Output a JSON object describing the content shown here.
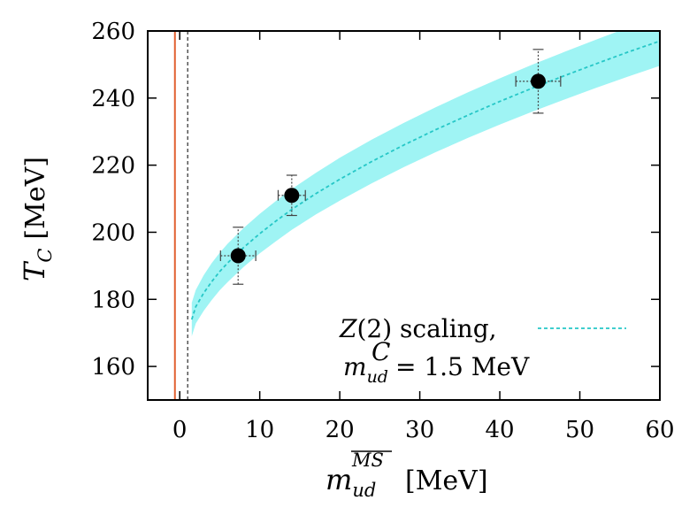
{
  "chart_data": {
    "type": "scatter",
    "xlabel": {
      "symbol": "m",
      "sub": "ud",
      "sup": "MS",
      "unit": "[MeV]"
    },
    "ylabel": {
      "symbol": "T",
      "sub": "C",
      "unit": "[MeV]"
    },
    "xlim": [
      -4,
      60
    ],
    "ylim": [
      150,
      260
    ],
    "x_ticks": [
      0,
      10,
      20,
      30,
      40,
      50,
      60
    ],
    "y_ticks": [
      160,
      180,
      200,
      220,
      240,
      260
    ],
    "grid": false,
    "points": [
      {
        "x": 7.3,
        "y": 193,
        "xerr": 2.2,
        "yerr": 8.5
      },
      {
        "x": 14.0,
        "y": 211,
        "xerr": 1.7,
        "yerr": 6.0
      },
      {
        "x": 44.8,
        "y": 245,
        "xerr": 2.8,
        "yerr": 9.5
      }
    ],
    "fit": {
      "critical_mass": 1.5,
      "x": [
        1.5,
        2,
        3,
        4,
        5,
        6,
        8,
        10,
        12,
        14,
        17,
        20,
        24,
        28,
        32,
        36,
        40,
        44,
        48,
        52,
        56,
        60
      ],
      "y": [
        174,
        177.8,
        181.9,
        185.3,
        188.3,
        190.9,
        195.5,
        199.6,
        203.3,
        206.8,
        211.5,
        215.8,
        221.1,
        226.0,
        230.6,
        234.9,
        239.0,
        242.9,
        246.6,
        250.2,
        253.7,
        257.0
      ],
      "band_width": [
        5,
        5,
        5.3,
        5.5,
        5.6,
        5.7,
        5.8,
        5.9,
        6.0,
        6.1,
        6.2,
        6.4,
        6.5,
        6.6,
        6.7,
        6.8,
        6.9,
        7.0,
        7.1,
        7.2,
        7.3,
        7.4
      ]
    },
    "vlines": [
      {
        "x": -0.6,
        "style": "solid",
        "color": "#e06030"
      },
      {
        "x": 1.0,
        "style": "dashed",
        "color": "#555555"
      }
    ],
    "legend": {
      "position": "bottom-right",
      "line1": "Z(2) scaling,",
      "line2_symbol": "m",
      "line2_sub": "ud",
      "line2_sup": "C",
      "line2_value": "= 1.5 MeV"
    },
    "colors": {
      "band": "#9ff4f4",
      "fit_line": "#26c7c7",
      "points": "#000000"
    }
  }
}
